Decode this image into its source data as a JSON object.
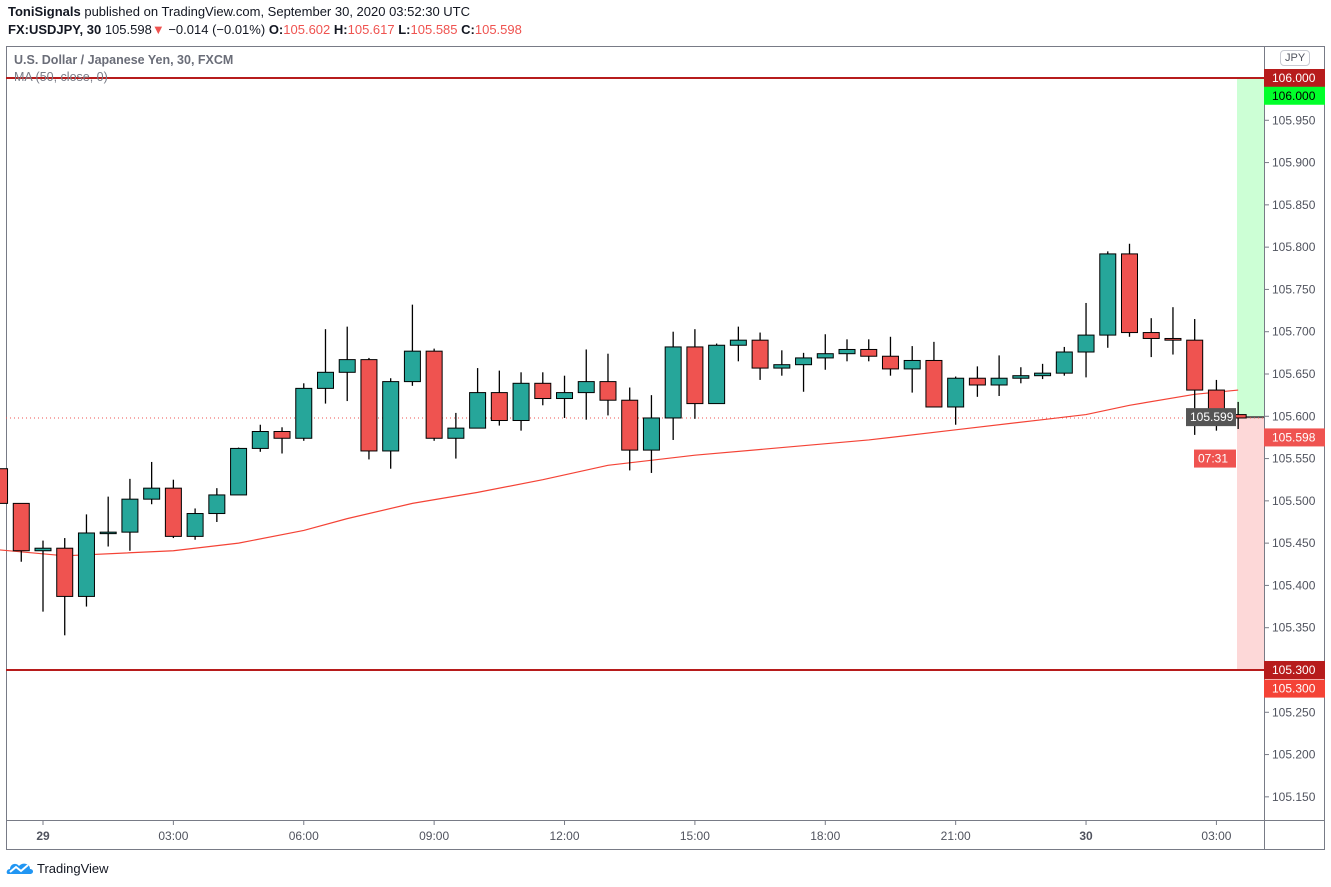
{
  "header": {
    "author": "ToniSignals",
    "published": "published on TradingView.com, September 30, 2020 03:52:30 UTC",
    "symbol": "FX:USDJPY, 30",
    "last": "105.598",
    "change": "−0.014 (−0.01%)",
    "o_label": "O:",
    "o": "105.602",
    "h_label": "H:",
    "h": "105.617",
    "l_label": "L:",
    "l": "105.585",
    "c_label": "C:",
    "c": "105.598",
    "direction_icon": "triangle-down-icon"
  },
  "legend": {
    "title": "U.S. Dollar / Japanese Yen, 30, FXCM",
    "ma": "MA (50, close, 0)"
  },
  "colors": {
    "up": "#26a69a",
    "down": "#ef5350",
    "ma": "#f44336",
    "level_line": "#b71c1c",
    "target_zone": "#ccffd5",
    "stop_zone": "#fdd8d8"
  },
  "price_axis": {
    "currency": "JPY",
    "ticks": [
      "105.150",
      "105.200",
      "105.250",
      "105.350",
      "105.400",
      "105.450",
      "105.500",
      "105.550",
      "105.600",
      "105.650",
      "105.700",
      "105.750",
      "105.800",
      "105.850",
      "105.900",
      "105.950"
    ],
    "badges": {
      "top_line": "106.000",
      "target": "106.000",
      "entry": "105.599",
      "last": "105.598",
      "countdown": "07:31",
      "bottom_line": "105.300",
      "stop": "105.300"
    }
  },
  "levels": {
    "resistance": 106.0,
    "support": 105.3,
    "entry": 105.599,
    "last": 105.598
  },
  "time_axis": [
    {
      "label": "29",
      "time": "09-29 00:00"
    },
    {
      "label": "03:00",
      "time": "09-29 03:00"
    },
    {
      "label": "06:00",
      "time": "09-29 06:00"
    },
    {
      "label": "09:00",
      "time": "09-29 09:00"
    },
    {
      "label": "12:00",
      "time": "09-29 12:00"
    },
    {
      "label": "15:00",
      "time": "09-29 15:00"
    },
    {
      "label": "18:00",
      "time": "09-29 18:00"
    },
    {
      "label": "21:00",
      "time": "09-29 21:00"
    },
    {
      "label": "30",
      "time": "09-30 00:00"
    },
    {
      "label": "03:00",
      "time": "09-30 03:00"
    }
  ],
  "candles": [
    [
      "09-28 23:00",
      105.538,
      105.538,
      105.497,
      105.497
    ],
    [
      "09-28 23:30",
      105.497,
      105.497,
      105.428,
      105.441
    ],
    [
      "09-29 00:00",
      105.441,
      105.453,
      105.369,
      105.444
    ],
    [
      "09-29 00:30",
      105.444,
      105.456,
      105.341,
      105.387
    ],
    [
      "09-29 01:00",
      105.387,
      105.484,
      105.375,
      105.462
    ],
    [
      "09-29 01:30",
      105.462,
      105.505,
      105.446,
      105.463
    ],
    [
      "09-29 02:00",
      105.463,
      105.526,
      105.441,
      105.502
    ],
    [
      "09-29 02:30",
      105.502,
      105.546,
      105.496,
      105.515
    ],
    [
      "09-29 03:00",
      105.515,
      105.525,
      105.456,
      105.458
    ],
    [
      "09-29 03:30",
      105.458,
      105.491,
      105.454,
      105.485
    ],
    [
      "09-29 04:00",
      105.485,
      105.515,
      105.475,
      105.507
    ],
    [
      "09-29 04:30",
      105.507,
      105.563,
      105.507,
      105.562
    ],
    [
      "09-29 05:00",
      105.562,
      105.59,
      105.558,
      105.582
    ],
    [
      "09-29 05:30",
      105.582,
      105.587,
      105.556,
      105.574
    ],
    [
      "09-29 06:00",
      105.574,
      105.639,
      105.571,
      105.633
    ],
    [
      "09-29 06:30",
      105.633,
      105.703,
      105.615,
      105.652
    ],
    [
      "09-29 07:00",
      105.652,
      105.706,
      105.618,
      105.667
    ],
    [
      "09-29 07:30",
      105.667,
      105.669,
      105.549,
      105.559
    ],
    [
      "09-29 08:00",
      105.559,
      105.645,
      105.538,
      105.641
    ],
    [
      "09-29 08:30",
      105.641,
      105.732,
      105.636,
      105.677
    ],
    [
      "09-29 09:00",
      105.677,
      105.68,
      105.571,
      105.574
    ],
    [
      "09-29 09:30",
      105.574,
      105.604,
      105.55,
      105.586
    ],
    [
      "09-29 10:00",
      105.586,
      105.657,
      105.586,
      105.628
    ],
    [
      "09-29 10:30",
      105.628,
      105.654,
      105.589,
      105.595
    ],
    [
      "09-29 11:00",
      105.595,
      105.652,
      105.583,
      105.639
    ],
    [
      "09-29 11:30",
      105.639,
      105.652,
      105.613,
      105.621
    ],
    [
      "09-29 12:00",
      105.621,
      105.648,
      105.598,
      105.628
    ],
    [
      "09-29 12:30",
      105.628,
      105.679,
      105.596,
      105.641
    ],
    [
      "09-29 13:00",
      105.641,
      105.674,
      105.601,
      105.619
    ],
    [
      "09-29 13:30",
      105.619,
      105.634,
      105.536,
      105.56
    ],
    [
      "09-29 14:00",
      105.56,
      105.625,
      105.533,
      105.598
    ],
    [
      "09-29 14:30",
      105.598,
      105.7,
      105.572,
      105.682
    ],
    [
      "09-29 15:00",
      105.682,
      105.703,
      105.597,
      105.615
    ],
    [
      "09-29 15:30",
      105.615,
      105.686,
      105.615,
      105.684
    ],
    [
      "09-29 16:00",
      105.684,
      105.706,
      105.665,
      105.69
    ],
    [
      "09-29 16:30",
      105.69,
      105.699,
      105.643,
      105.657
    ],
    [
      "09-29 17:00",
      105.657,
      105.678,
      105.648,
      105.661
    ],
    [
      "09-29 17:30",
      105.661,
      105.675,
      105.629,
      105.669
    ],
    [
      "09-29 18:00",
      105.669,
      105.697,
      105.655,
      105.674
    ],
    [
      "09-29 18:30",
      105.674,
      105.691,
      105.665,
      105.679
    ],
    [
      "09-29 19:00",
      105.679,
      105.691,
      105.665,
      105.671
    ],
    [
      "09-29 19:30",
      105.671,
      105.694,
      105.648,
      105.656
    ],
    [
      "09-29 20:00",
      105.656,
      105.683,
      105.628,
      105.666
    ],
    [
      "09-29 20:30",
      105.666,
      105.688,
      105.611,
      105.611
    ],
    [
      "09-29 21:00",
      105.611,
      105.647,
      105.59,
      105.645
    ],
    [
      "09-29 21:30",
      105.645,
      105.659,
      105.623,
      105.637
    ],
    [
      "09-29 22:00",
      105.637,
      105.672,
      105.624,
      105.645
    ],
    [
      "09-29 22:30",
      105.645,
      105.658,
      105.639,
      105.648
    ],
    [
      "09-29 23:00",
      105.648,
      105.662,
      105.644,
      105.651
    ],
    [
      "09-29 23:30",
      105.651,
      105.682,
      105.648,
      105.676
    ],
    [
      "09-30 00:00",
      105.676,
      105.734,
      105.646,
      105.696
    ],
    [
      "09-30 00:30",
      105.696,
      105.795,
      105.681,
      105.792
    ],
    [
      "09-30 01:00",
      105.792,
      105.804,
      105.694,
      105.699
    ],
    [
      "09-30 01:30",
      105.699,
      105.716,
      105.67,
      105.692
    ],
    [
      "09-30 02:00",
      105.692,
      105.729,
      105.673,
      105.69
    ],
    [
      "09-30 02:30",
      105.69,
      105.715,
      105.578,
      105.631
    ],
    [
      "09-30 03:00",
      105.631,
      105.643,
      105.583,
      105.601
    ],
    [
      "09-30 03:30",
      105.602,
      105.617,
      105.585,
      105.598
    ]
  ],
  "ma": [
    [
      "09-28 23:00",
      105.442
    ],
    [
      "09-29 00:30",
      105.435
    ],
    [
      "09-29 03:00",
      105.441
    ],
    [
      "09-29 04:30",
      105.45
    ],
    [
      "09-29 06:00",
      105.465
    ],
    [
      "09-29 07:00",
      105.479
    ],
    [
      "09-29 08:30",
      105.497
    ],
    [
      "09-29 10:00",
      105.51
    ],
    [
      "09-29 11:30",
      105.525
    ],
    [
      "09-29 13:00",
      105.542
    ],
    [
      "09-29 15:00",
      105.554
    ],
    [
      "09-29 17:00",
      105.563
    ],
    [
      "09-29 19:00",
      105.572
    ],
    [
      "09-29 21:00",
      105.584
    ],
    [
      "09-29 23:00",
      105.596
    ],
    [
      "09-30 00:00",
      105.602
    ],
    [
      "09-30 01:00",
      105.613
    ],
    [
      "09-30 02:30",
      105.626
    ],
    [
      "09-30 03:30",
      105.631
    ]
  ],
  "footer": {
    "brand": "TradingView",
    "brand_icon": "tradingview-logo-icon"
  }
}
